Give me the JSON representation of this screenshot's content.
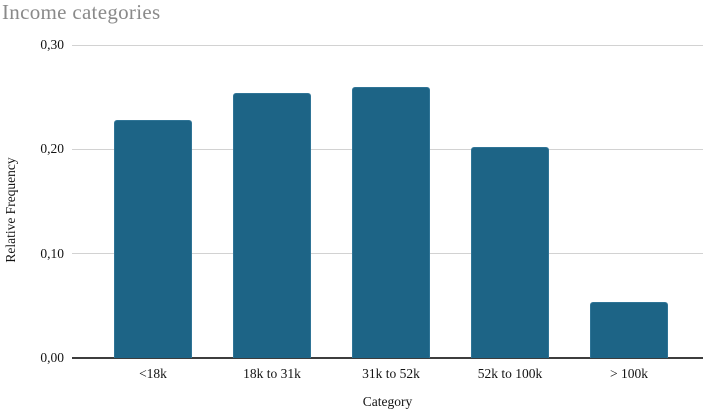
{
  "page": {
    "background": "#ffffff"
  },
  "chart_data": {
    "type": "bar",
    "title": "Income categories",
    "xlabel": "Category",
    "ylabel": "Relative Frequency",
    "categories": [
      "<18k",
      "18k to 31k",
      "31k to 52k",
      "52k to 100k",
      "> 100k"
    ],
    "values": [
      0.228,
      0.254,
      0.26,
      0.202,
      0.054
    ],
    "ylim": [
      0,
      0.3
    ],
    "yticks": [
      0,
      0.1,
      0.2,
      0.3
    ],
    "ytick_labels": [
      "0,00",
      "0,10",
      "0,20",
      "0,30"
    ],
    "decimal_separator": ",",
    "grid": "horizontal-major",
    "legend_position": "none",
    "colors": {
      "bar_fill": "#1d6486",
      "bar_edge": "#2f7496",
      "gridline": "#d2d2d2",
      "axis_line": "#3d3d3d",
      "title_text": "#8a8a8a",
      "tick_text": "#141414"
    }
  }
}
